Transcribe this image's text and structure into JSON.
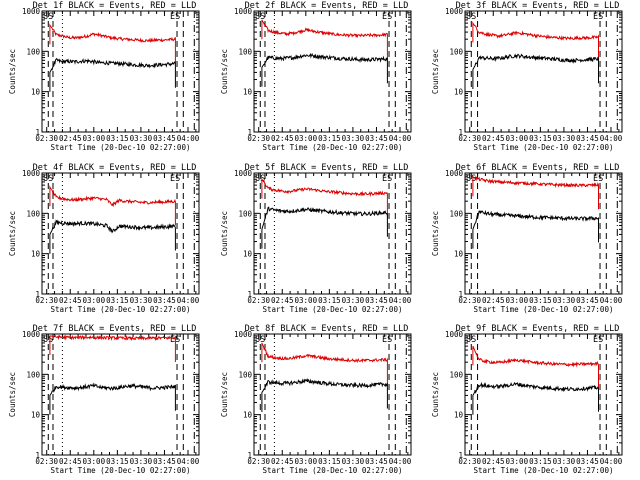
{
  "chart_data": [
    {
      "type": "line",
      "title": "Det 1f BLACK = Events, RED = LLD",
      "xlabel": "Start Time (20-Dec-10 02:27:00)",
      "ylabel": "Counts/sec",
      "y_scale": "log",
      "ylim": [
        1,
        1000
      ],
      "y_ticks": [
        "1",
        "10",
        "100",
        "1000"
      ],
      "x_ticks": [
        "02:30",
        "02:45",
        "03:00",
        "03:15",
        "03:30",
        "03:45",
        "04:00"
      ],
      "x_range": [
        "02:27",
        "04:07"
      ],
      "markers": {
        "left": "SS",
        "right": "ES"
      },
      "vlines": [
        {
          "time": "02:31",
          "style": "dashed"
        },
        {
          "time": "02:34",
          "style": "dashed"
        },
        {
          "time": "02:40",
          "style": "dotted"
        },
        {
          "time": "03:53",
          "style": "dashed"
        },
        {
          "time": "03:57",
          "style": "dashed"
        },
        {
          "time": "04:04",
          "style": "dash-dot"
        }
      ],
      "series": [
        {
          "name": "LLD",
          "color": "#dd0000",
          "start": "02:32",
          "end": "03:52",
          "values": [
            450,
            260,
            240,
            220,
            215,
            225,
            240,
            270,
            250,
            230,
            215,
            205,
            200,
            195,
            190,
            185,
            185,
            190,
            190,
            195,
            200
          ]
        },
        {
          "name": "Events",
          "color": "#000000",
          "start": "02:32",
          "end": "03:52",
          "values": [
            30,
            60,
            55,
            56,
            55,
            57,
            58,
            55,
            52,
            52,
            50,
            50,
            48,
            47,
            46,
            45,
            45,
            46,
            47,
            48,
            50
          ]
        }
      ]
    },
    {
      "type": "line",
      "title": "Det 2f BLACK = Events, RED = LLD",
      "xlabel": "Start Time (20-Dec-10 02:27:00)",
      "ylabel": "Counts/sec",
      "y_scale": "log",
      "ylim": [
        1,
        1000
      ],
      "y_ticks": [
        "1",
        "10",
        "100",
        "1000"
      ],
      "x_ticks": [
        "02:30",
        "02:45",
        "03:00",
        "03:15",
        "03:30",
        "03:45",
        "04:00"
      ],
      "x_range": [
        "02:27",
        "04:07"
      ],
      "markers": {
        "left": "SS",
        "right": "ES"
      },
      "vlines": [
        {
          "time": "02:31",
          "style": "dashed"
        },
        {
          "time": "02:34",
          "style": "dashed"
        },
        {
          "time": "02:40",
          "style": "dotted"
        },
        {
          "time": "03:53",
          "style": "dashed"
        },
        {
          "time": "03:57",
          "style": "dashed"
        },
        {
          "time": "04:04",
          "style": "dash-dot"
        }
      ],
      "series": [
        {
          "name": "LLD",
          "color": "#dd0000",
          "start": "02:32",
          "end": "03:52",
          "values": [
            600,
            330,
            300,
            280,
            270,
            285,
            310,
            340,
            320,
            300,
            285,
            270,
            260,
            255,
            250,
            245,
            245,
            250,
            250,
            255,
            260
          ]
        },
        {
          "name": "Events",
          "color": "#000000",
          "start": "02:32",
          "end": "03:52",
          "values": [
            40,
            70,
            68,
            66,
            68,
            70,
            75,
            80,
            78,
            75,
            72,
            70,
            68,
            66,
            65,
            63,
            62,
            62,
            63,
            64,
            65
          ]
        }
      ]
    },
    {
      "type": "line",
      "title": "Det 3f BLACK = Events, RED = LLD",
      "xlabel": "Start Time (20-Dec-10 02:27:00)",
      "ylabel": "Counts/sec",
      "y_scale": "log",
      "ylim": [
        1,
        1000
      ],
      "y_ticks": [
        "1",
        "10",
        "100",
        "1000"
      ],
      "x_ticks": [
        "02:30",
        "02:45",
        "03:00",
        "03:15",
        "03:30",
        "03:45",
        "04:00"
      ],
      "x_range": [
        "02:27",
        "04:07"
      ],
      "markers": {
        "left": "SS",
        "right": "ES"
      },
      "vlines": [
        {
          "time": "02:31",
          "style": "dashed"
        },
        {
          "time": "02:35",
          "style": "dashed"
        },
        {
          "time": "03:53",
          "style": "dashed"
        },
        {
          "time": "03:57",
          "style": "dashed"
        },
        {
          "time": "04:04",
          "style": "dash-dot"
        }
      ],
      "series": [
        {
          "name": "LLD",
          "color": "#dd0000",
          "start": "02:32",
          "end": "03:52",
          "values": [
            500,
            300,
            270,
            250,
            240,
            250,
            270,
            290,
            275,
            260,
            245,
            235,
            225,
            220,
            215,
            210,
            210,
            215,
            215,
            220,
            225
          ]
        },
        {
          "name": "Events",
          "color": "#000000",
          "start": "02:32",
          "end": "03:52",
          "values": [
            35,
            70,
            68,
            66,
            67,
            70,
            75,
            78,
            75,
            72,
            70,
            68,
            66,
            64,
            62,
            60,
            60,
            61,
            62,
            63,
            65
          ]
        }
      ]
    },
    {
      "type": "line",
      "title": "Det 4f BLACK = Events, RED = LLD",
      "xlabel": "Start Time (20-Dec-10 02:27:00)",
      "ylabel": "Counts/sec",
      "y_scale": "log",
      "ylim": [
        1,
        1000
      ],
      "y_ticks": [
        "1",
        "10",
        "100",
        "1000"
      ],
      "x_ticks": [
        "02:30",
        "02:45",
        "03:00",
        "03:15",
        "03:30",
        "03:45",
        "04:00"
      ],
      "x_range": [
        "02:27",
        "04:07"
      ],
      "markers": {
        "left": "SS",
        "right": "ES"
      },
      "vlines": [
        {
          "time": "02:31",
          "style": "dashed"
        },
        {
          "time": "02:34",
          "style": "dashed"
        },
        {
          "time": "02:40",
          "style": "dotted"
        },
        {
          "time": "03:53",
          "style": "dashed"
        },
        {
          "time": "03:57",
          "style": "dashed"
        },
        {
          "time": "04:04",
          "style": "dash-dot"
        }
      ],
      "series": [
        {
          "name": "LLD",
          "color": "#dd0000",
          "start": "02:32",
          "end": "03:52",
          "values": [
            450,
            250,
            230,
            220,
            215,
            225,
            230,
            240,
            230,
            220,
            160,
            210,
            200,
            195,
            190,
            185,
            185,
            190,
            190,
            195,
            200
          ]
        },
        {
          "name": "Events",
          "color": "#000000",
          "start": "02:32",
          "end": "03:52",
          "values": [
            30,
            60,
            58,
            56,
            55,
            57,
            56,
            55,
            52,
            50,
            35,
            48,
            47,
            46,
            45,
            44,
            44,
            45,
            46,
            47,
            48
          ]
        }
      ]
    },
    {
      "type": "line",
      "title": "Det 5f BLACK = Events, RED = LLD",
      "xlabel": "Start Time (20-Dec-10 02:27:00)",
      "ylabel": "Counts/sec",
      "y_scale": "log",
      "ylim": [
        1,
        1000
      ],
      "y_ticks": [
        "1",
        "10",
        "100",
        "1000"
      ],
      "x_ticks": [
        "02:30",
        "02:45",
        "03:00",
        "03:15",
        "03:30",
        "03:45",
        "04:00"
      ],
      "x_range": [
        "02:27",
        "04:07"
      ],
      "markers": {
        "left": "SS",
        "right": "ES"
      },
      "vlines": [
        {
          "time": "02:31",
          "style": "dashed"
        },
        {
          "time": "02:34",
          "style": "dashed"
        },
        {
          "time": "02:40",
          "style": "dotted"
        },
        {
          "time": "03:53",
          "style": "dashed"
        },
        {
          "time": "03:57",
          "style": "dashed"
        },
        {
          "time": "04:04",
          "style": "dash-dot"
        }
      ],
      "series": [
        {
          "name": "LLD",
          "color": "#dd0000",
          "start": "02:32",
          "end": "03:52",
          "values": [
            700,
            420,
            380,
            360,
            350,
            360,
            380,
            400,
            390,
            370,
            350,
            340,
            330,
            320,
            310,
            305,
            300,
            305,
            310,
            315,
            320
          ]
        },
        {
          "name": "Events",
          "color": "#000000",
          "start": "02:32",
          "end": "03:52",
          "values": [
            40,
            130,
            120,
            115,
            112,
            115,
            120,
            125,
            120,
            115,
            112,
            108,
            105,
            102,
            100,
            98,
            97,
            98,
            100,
            102,
            105
          ]
        }
      ]
    },
    {
      "type": "line",
      "title": "Det 6f BLACK = Events, RED = LLD",
      "xlabel": "Start Time (20-Dec-10 02:27:00)",
      "ylabel": "Counts/sec",
      "y_scale": "log",
      "ylim": [
        1,
        1000
      ],
      "y_ticks": [
        "1",
        "10",
        "100",
        "1000"
      ],
      "x_ticks": [
        "02:30",
        "02:45",
        "03:00",
        "03:15",
        "03:30",
        "03:45",
        "04:00"
      ],
      "x_range": [
        "02:27",
        "04:07"
      ],
      "markers": {
        "left": "SS",
        "right": "ES"
      },
      "vlines": [
        {
          "time": "02:31",
          "style": "dashed"
        },
        {
          "time": "02:35",
          "style": "dashed"
        },
        {
          "time": "03:53",
          "style": "dashed"
        },
        {
          "time": "03:57",
          "style": "dashed"
        },
        {
          "time": "04:04",
          "style": "dash-dot"
        }
      ],
      "series": [
        {
          "name": "LLD",
          "color": "#dd0000",
          "start": "02:32",
          "end": "03:52",
          "values": [
            800,
            700,
            650,
            620,
            600,
            590,
            580,
            570,
            560,
            550,
            540,
            530,
            520,
            510,
            505,
            500,
            495,
            495,
            495,
            500,
            505
          ]
        },
        {
          "name": "Events",
          "color": "#000000",
          "start": "02:32",
          "end": "03:52",
          "values": [
            40,
            110,
            100,
            95,
            92,
            90,
            88,
            86,
            84,
            82,
            80,
            79,
            78,
            77,
            76,
            75,
            74,
            74,
            74,
            75,
            76
          ]
        }
      ]
    },
    {
      "type": "line",
      "title": "Det 7f BLACK = Events, RED = LLD",
      "xlabel": "Start Time (20-Dec-10 02:27:00)",
      "ylabel": "Counts/sec",
      "y_scale": "log",
      "ylim": [
        1,
        1000
      ],
      "y_ticks": [
        "1",
        "10",
        "100",
        "1000"
      ],
      "x_ticks": [
        "02:30",
        "02:45",
        "03:00",
        "03:15",
        "03:30",
        "03:45",
        "04:00"
      ],
      "x_range": [
        "02:27",
        "04:07"
      ],
      "markers": {
        "left": "SS",
        "right": "ES"
      },
      "vlines": [
        {
          "time": "02:31",
          "style": "dashed"
        },
        {
          "time": "02:34",
          "style": "dashed"
        },
        {
          "time": "02:40",
          "style": "dotted"
        },
        {
          "time": "03:53",
          "style": "dashed"
        },
        {
          "time": "03:57",
          "style": "dashed"
        },
        {
          "time": "04:04",
          "style": "dash-dot"
        }
      ],
      "series": [
        {
          "name": "LLD",
          "color": "#dd0000",
          "start": "02:32",
          "end": "03:52",
          "values": [
            900,
            850,
            830,
            820,
            810,
            820,
            830,
            820,
            810,
            800,
            800,
            790,
            790,
            780,
            780,
            780,
            790,
            790,
            800,
            800,
            810
          ]
        },
        {
          "name": "Events",
          "color": "#000000",
          "start": "02:32",
          "end": "03:52",
          "values": [
            30,
            50,
            48,
            47,
            46,
            47,
            50,
            52,
            48,
            46,
            45,
            47,
            50,
            52,
            50,
            48,
            46,
            46,
            47,
            48,
            50
          ]
        }
      ]
    },
    {
      "type": "line",
      "title": "Det 8f BLACK = Events, RED = LLD",
      "xlabel": "Start Time (20-Dec-10 02:27:00)",
      "ylabel": "Counts/sec",
      "y_scale": "log",
      "ylim": [
        1,
        1000
      ],
      "y_ticks": [
        "1",
        "10",
        "100",
        "1000"
      ],
      "x_ticks": [
        "02:30",
        "02:45",
        "03:00",
        "03:15",
        "03:30",
        "03:45",
        "04:00"
      ],
      "x_range": [
        "02:27",
        "04:07"
      ],
      "markers": {
        "left": "SS",
        "right": "ES"
      },
      "vlines": [
        {
          "time": "02:31",
          "style": "dashed"
        },
        {
          "time": "02:34",
          "style": "dashed"
        },
        {
          "time": "02:40",
          "style": "dotted"
        },
        {
          "time": "03:53",
          "style": "dashed"
        },
        {
          "time": "03:57",
          "style": "dashed"
        },
        {
          "time": "04:04",
          "style": "dash-dot"
        }
      ],
      "series": [
        {
          "name": "LLD",
          "color": "#dd0000",
          "start": "02:32",
          "end": "03:52",
          "values": [
            600,
            280,
            260,
            250,
            245,
            255,
            270,
            290,
            280,
            265,
            250,
            240,
            235,
            230,
            225,
            220,
            220,
            222,
            225,
            228,
            230
          ]
        },
        {
          "name": "Events",
          "color": "#000000",
          "start": "02:32",
          "end": "03:52",
          "values": [
            35,
            65,
            62,
            60,
            60,
            62,
            65,
            68,
            66,
            63,
            60,
            58,
            56,
            55,
            54,
            53,
            53,
            54,
            55,
            56,
            57
          ]
        }
      ]
    },
    {
      "type": "line",
      "title": "Det 9f BLACK = Events, RED = LLD",
      "xlabel": "Start Time (20-Dec-10 02:27:00)",
      "ylabel": "Counts/sec",
      "y_scale": "log",
      "ylim": [
        1,
        1000
      ],
      "y_ticks": [
        "1",
        "10",
        "100",
        "1000"
      ],
      "x_ticks": [
        "02:30",
        "02:45",
        "03:00",
        "03:15",
        "03:30",
        "03:45",
        "04:00"
      ],
      "x_range": [
        "02:27",
        "04:07"
      ],
      "markers": {
        "left": "SS",
        "right": "ES"
      },
      "vlines": [
        {
          "time": "02:31",
          "style": "dashed"
        },
        {
          "time": "02:35",
          "style": "dashed"
        },
        {
          "time": "03:53",
          "style": "dashed"
        },
        {
          "time": "03:57",
          "style": "dashed"
        },
        {
          "time": "04:04",
          "style": "dash-dot"
        }
      ],
      "series": [
        {
          "name": "LLD",
          "color": "#dd0000",
          "start": "02:32",
          "end": "03:52",
          "values": [
            500,
            230,
            210,
            200,
            195,
            205,
            215,
            225,
            215,
            205,
            195,
            190,
            185,
            180,
            178,
            175,
            175,
            178,
            180,
            182,
            185
          ]
        },
        {
          "name": "Events",
          "color": "#000000",
          "start": "02:32",
          "end": "03:52",
          "values": [
            30,
            55,
            52,
            50,
            50,
            52,
            55,
            57,
            54,
            51,
            49,
            47,
            46,
            45,
            44,
            43,
            43,
            44,
            45,
            46,
            47
          ]
        }
      ]
    }
  ]
}
